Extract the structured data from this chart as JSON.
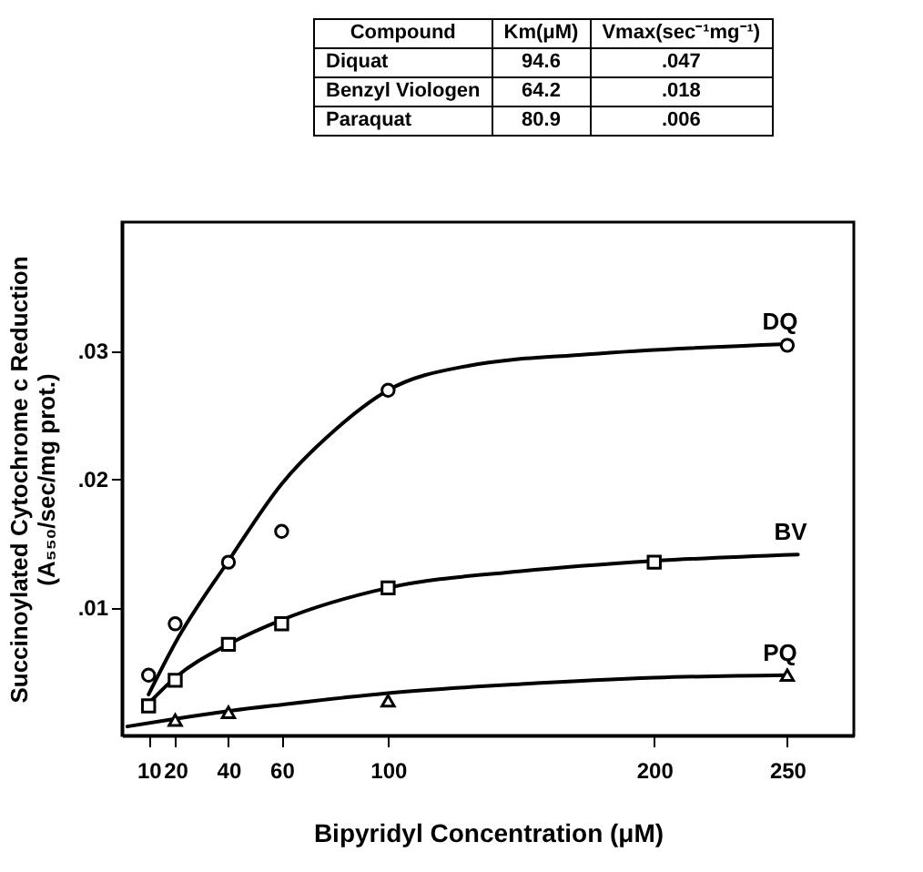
{
  "chart_data": {
    "type": "scatter",
    "xlabel": "Bipyridyl Concentration (μM)",
    "ylabel": "Succinoylated Cytochrome c Reduction\n(A₅₅₀/sec/mg prot.)",
    "annotations": [
      "Compound",
      "Km(μM)",
      "Vmax(sec⁻¹mg⁻¹)",
      "Diquat",
      "94.6",
      ".047",
      "Benzyl Viologen",
      "64.2",
      ".018",
      "Paraquat",
      "80.9",
      ".006"
    ],
    "xlim": [
      0,
      275
    ],
    "xticks": [
      10,
      20,
      40,
      60,
      100,
      200,
      250
    ],
    "ylim": [
      0,
      0.04
    ],
    "yticks": [
      {
        "value": 0.01,
        "label": ".01"
      },
      {
        "value": 0.02,
        "label": ".02"
      },
      {
        "value": 0.03,
        "label": ".03"
      }
    ],
    "grid": false,
    "legend": false,
    "line_style": "solid",
    "series": [
      {
        "type": "line",
        "name": "DQ",
        "color": "#000000",
        "marker": "none",
        "x": [
          10,
          20,
          40,
          60,
          80,
          100,
          130,
          175,
          250
        ],
        "values": [
          0.0032,
          0.0072,
          0.0136,
          0.0196,
          0.0238,
          0.0269,
          0.0288,
          0.0297,
          0.0305
        ]
      },
      {
        "color": "#000000",
        "marker": "circle",
        "x": [
          10,
          20,
          40,
          60,
          100,
          250
        ],
        "values": [
          0.0047,
          0.0087,
          0.0135,
          0.0159,
          0.0269,
          0.0304
        ]
      },
      {
        "type": "line",
        "name": "BV",
        "color": "#000000",
        "marker": "none",
        "x": [
          10,
          20,
          40,
          60,
          100,
          150,
          200,
          254
        ],
        "values": [
          0.0025,
          0.0045,
          0.0071,
          0.009,
          0.0115,
          0.0128,
          0.0136,
          0.0141
        ]
      },
      {
        "color": "#000000",
        "marker": "square",
        "x": [
          10,
          20,
          40,
          60,
          100,
          200
        ],
        "values": [
          0.0023,
          0.0043,
          0.0071,
          0.0087,
          0.0115,
          0.0135
        ]
      },
      {
        "type": "line",
        "name": "PQ",
        "color": "#000000",
        "marker": "none",
        "x": [
          2,
          20,
          40,
          60,
          100,
          150,
          200,
          250
        ],
        "values": [
          0.0007,
          0.0013,
          0.0019,
          0.0024,
          0.0033,
          0.004,
          0.0045,
          0.0047
        ]
      },
      {
        "color": "#000000",
        "marker": "triangle",
        "x": [
          20,
          40,
          100,
          250
        ],
        "values": [
          0.0012,
          0.0018,
          0.0027,
          0.0047
        ]
      }
    ]
  }
}
